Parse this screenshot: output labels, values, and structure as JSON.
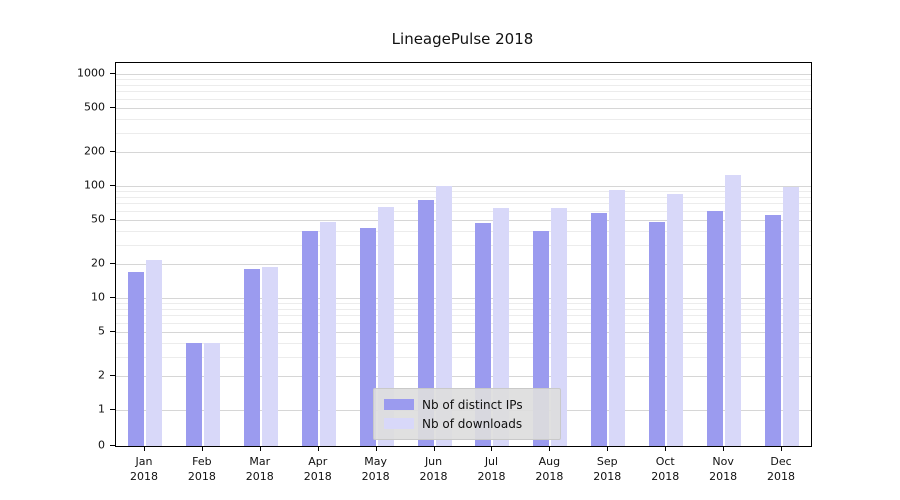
{
  "title": "LineagePulse 2018",
  "chart_data": {
    "type": "bar",
    "title": "LineagePulse 2018",
    "xlabel": "",
    "ylabel": "",
    "yscale": "symlog",
    "grid": true,
    "legend_position": "bottom-center",
    "categories": [
      "Jan",
      "Feb",
      "Mar",
      "Apr",
      "May",
      "Jun",
      "Jul",
      "Aug",
      "Sep",
      "Oct",
      "Nov",
      "Dec"
    ],
    "year_label": "2018",
    "yticks": [
      0,
      1,
      2,
      5,
      10,
      20,
      50,
      100,
      200,
      500,
      1000
    ],
    "ylim": [
      0,
      1400
    ],
    "series": [
      {
        "name": "Nb of distinct IPs",
        "color": "#9b9bef",
        "values": [
          17,
          4,
          18,
          40,
          42,
          75,
          47,
          40,
          58,
          48,
          60,
          55
        ]
      },
      {
        "name": "Nb of downloads",
        "color": "#d8d8f9",
        "values": [
          22,
          4,
          19,
          48,
          65,
          100,
          63,
          63,
          93,
          85,
          125,
          97
        ]
      }
    ]
  }
}
